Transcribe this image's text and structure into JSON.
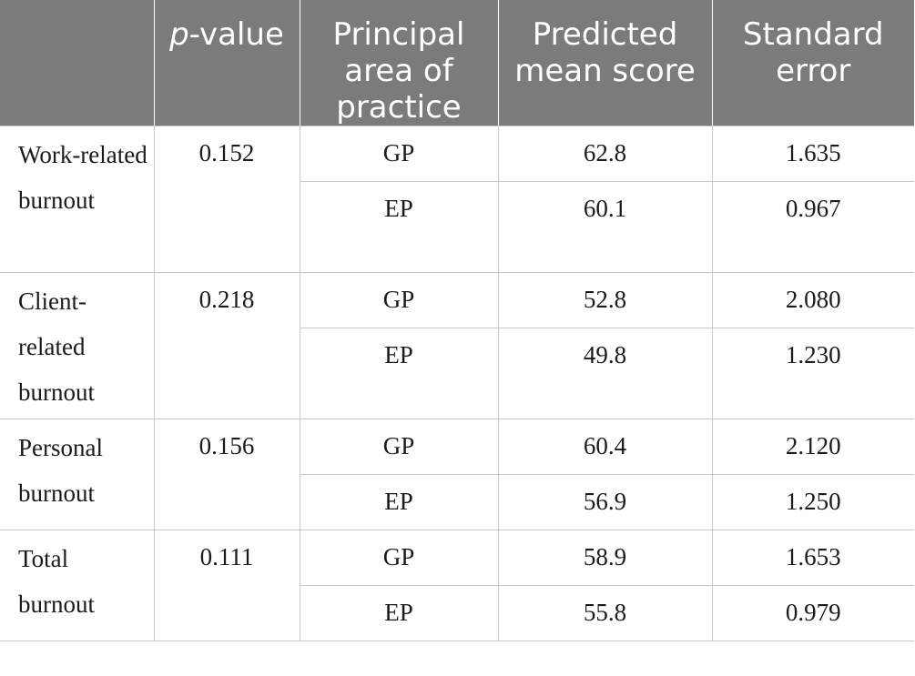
{
  "table": {
    "headers": {
      "blank": "",
      "p_italic": "p",
      "p_rest": "-value",
      "area": "Principal area of practice",
      "mean": "Predicted mean score",
      "se": "Standard error"
    },
    "groups": [
      {
        "label": "Work-related burnout",
        "p_value": "0.152",
        "rows": [
          {
            "area": "GP",
            "mean": "62.8",
            "se": "1.635"
          },
          {
            "area": "EP",
            "mean": "60.1",
            "se": "0.967"
          }
        ]
      },
      {
        "label": "Client-related burnout",
        "p_value": "0.218",
        "rows": [
          {
            "area": "GP",
            "mean": "52.8",
            "se": "2.080"
          },
          {
            "area": "EP",
            "mean": "49.8",
            "se": "1.230"
          }
        ]
      },
      {
        "label": "Personal burnout",
        "p_value": "0.156",
        "rows": [
          {
            "area": "GP",
            "mean": "60.4",
            "se": "2.120"
          },
          {
            "area": "EP",
            "mean": "56.9",
            "se": "1.250"
          }
        ]
      },
      {
        "label": "Total burnout",
        "p_value": "0.111",
        "rows": [
          {
            "area": "GP",
            "mean": "58.9",
            "se": "1.653"
          },
          {
            "area": "EP",
            "mean": "55.8",
            "se": "0.979"
          }
        ]
      }
    ]
  }
}
